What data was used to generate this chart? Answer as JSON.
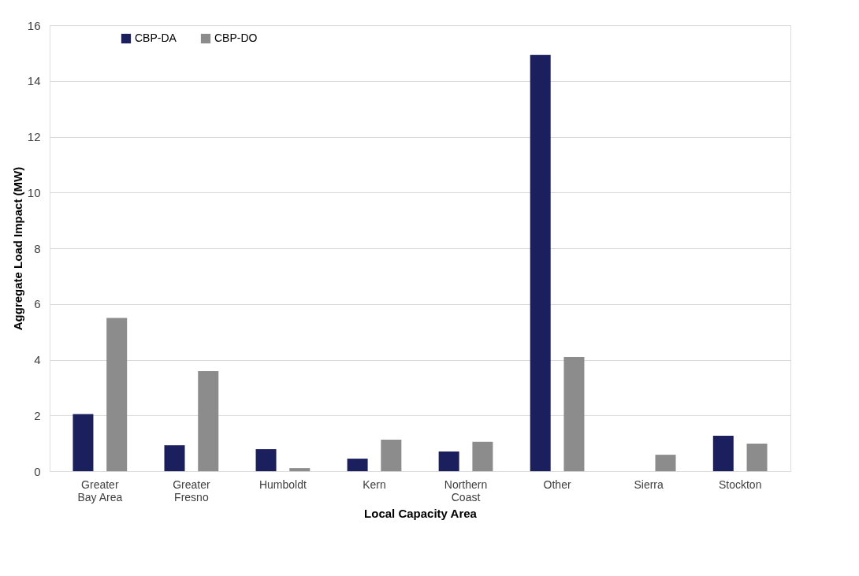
{
  "chart_data": {
    "type": "bar",
    "xlabel": "Local Capacity Area",
    "ylabel": "Aggregate Load Impact (MW)",
    "categories": [
      "Greater Bay Area",
      "Greater Fresno",
      "Humboldt",
      "Kern",
      "Northern Coast",
      "Other",
      "Sierra",
      "Stockton"
    ],
    "series": [
      {
        "name": "CBP-DA",
        "color": "#1b1f5e",
        "values": [
          2.05,
          0.93,
          0.79,
          0.45,
          0.71,
          14.93,
          null,
          1.27
        ]
      },
      {
        "name": "CBP-DO",
        "color": "#8c8c8c",
        "values": [
          5.5,
          3.59,
          0.11,
          1.13,
          1.05,
          4.1,
          0.59,
          0.99
        ]
      }
    ],
    "ylim": [
      0,
      16
    ],
    "yticks": [
      0,
      2,
      4,
      6,
      8,
      10,
      12,
      14,
      16
    ],
    "grid": "y",
    "legend": "top left"
  }
}
